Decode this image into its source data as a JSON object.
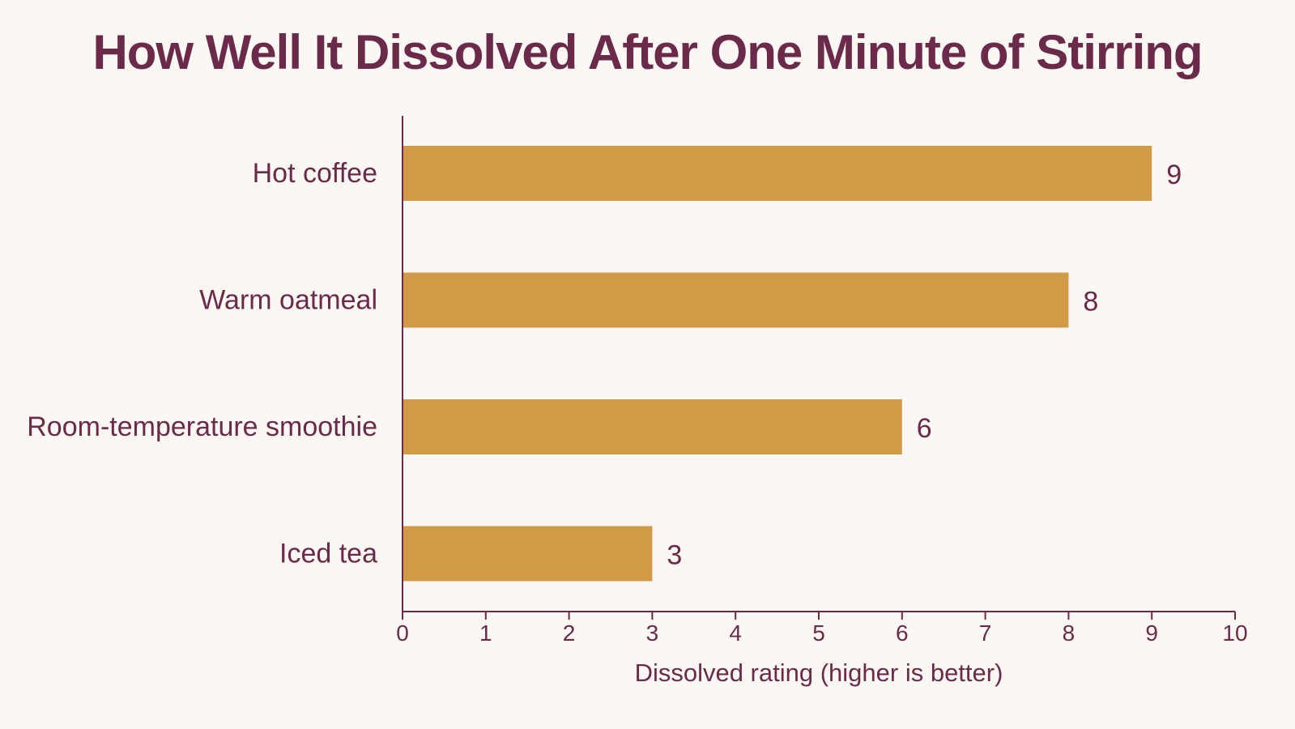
{
  "chart_data": {
    "type": "bar",
    "orientation": "horizontal",
    "title": "How Well It Dissolved After One Minute of Stirring",
    "categories": [
      "Hot coffee",
      "Warm oatmeal",
      "Room-temperature smoothie",
      "Iced tea"
    ],
    "values": [
      9,
      8,
      6,
      3
    ],
    "data_labels": [
      "9",
      "8",
      "6",
      "3"
    ],
    "xlabel": "Dissolved rating (higher is better)",
    "ylabel": "",
    "xlim": [
      0,
      10
    ],
    "x_ticks": [
      "0",
      "1",
      "2",
      "3",
      "4",
      "5",
      "6",
      "7",
      "8",
      "9",
      "10"
    ],
    "grid": false,
    "legend": "none",
    "colors": {
      "bar": "#d19a47",
      "text": "#6b2a4a",
      "axis": "#6b2a4a",
      "background": "#fbf8f3"
    }
  }
}
